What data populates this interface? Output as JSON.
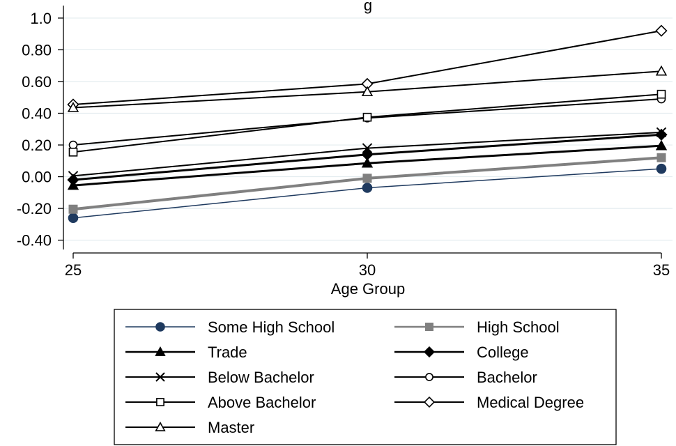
{
  "chart_data": {
    "type": "line",
    "title": "g",
    "xlabel": "Age Group",
    "ylabel": "",
    "x": [
      25,
      30,
      35
    ],
    "x_ticks": [
      "25",
      "30",
      "35"
    ],
    "y_ticks": [
      "1.0",
      "0.80",
      "0.60",
      "0.40",
      "0.20",
      "0.00",
      "-0.20",
      "-0.40"
    ],
    "y_tick_values": [
      1.0,
      0.8,
      0.6,
      0.4,
      0.2,
      0.0,
      -0.2,
      -0.4
    ],
    "xlim": [
      25,
      35
    ],
    "ylim": [
      -0.45,
      1.07
    ],
    "grid": true,
    "legend_position": "bottom",
    "series": [
      {
        "name": "Some High School",
        "values": [
          -0.26,
          -0.07,
          0.05
        ],
        "color": "#1f3a5f",
        "marker": "circle-filled",
        "line_width": 1.5
      },
      {
        "name": "High School",
        "values": [
          -0.205,
          -0.01,
          0.12
        ],
        "color": "#808080",
        "marker": "square-filled",
        "line_width": 4
      },
      {
        "name": "Trade",
        "values": [
          -0.055,
          0.085,
          0.195
        ],
        "color": "#000000",
        "marker": "triangle-filled",
        "line_width": 3
      },
      {
        "name": "College",
        "values": [
          -0.02,
          0.14,
          0.265
        ],
        "color": "#000000",
        "marker": "diamond-filled",
        "line_width": 3
      },
      {
        "name": "Below Bachelor",
        "values": [
          0.005,
          0.18,
          0.28
        ],
        "color": "#000000",
        "marker": "x",
        "line_width": 2
      },
      {
        "name": "Bachelor",
        "values": [
          0.2,
          0.37,
          0.49
        ],
        "color": "#000000",
        "marker": "circle-open",
        "line_width": 2
      },
      {
        "name": "Above Bachelor",
        "values": [
          0.155,
          0.375,
          0.52
        ],
        "color": "#000000",
        "marker": "square-open",
        "line_width": 2
      },
      {
        "name": "Medical Degree",
        "values": [
          0.455,
          0.585,
          0.92
        ],
        "color": "#000000",
        "marker": "diamond-open",
        "line_width": 2
      },
      {
        "name": "Master",
        "values": [
          0.435,
          0.535,
          0.665
        ],
        "color": "#000000",
        "marker": "triangle-open",
        "line_width": 2
      }
    ]
  }
}
